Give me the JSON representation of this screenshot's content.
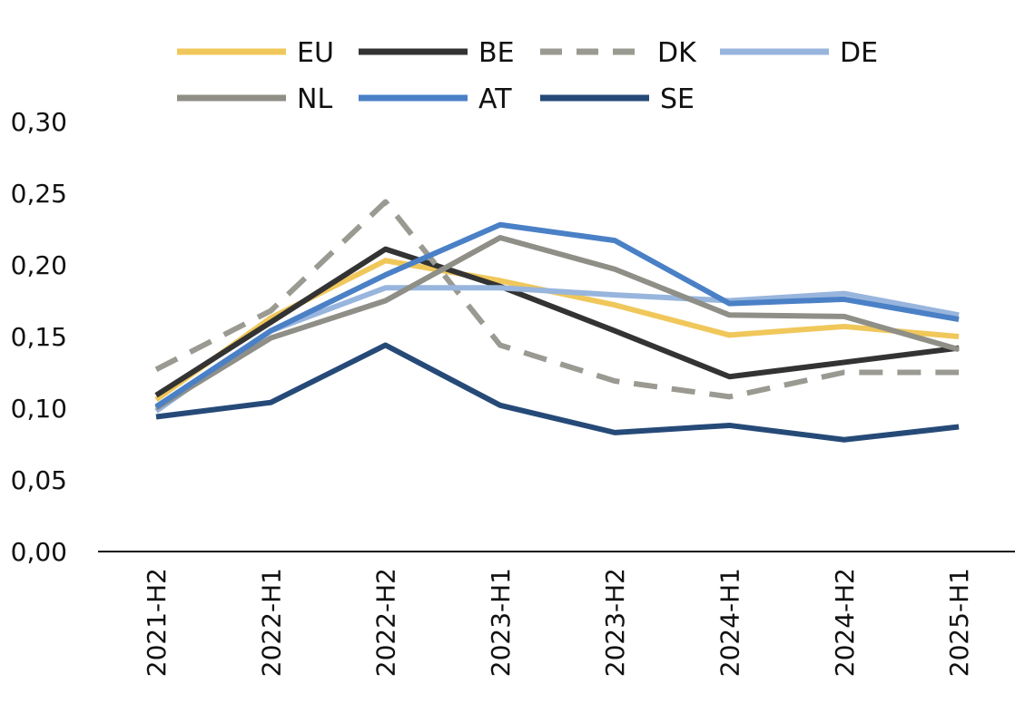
{
  "chart_data": {
    "type": "line",
    "title": "",
    "xlabel": "",
    "ylabel": "",
    "categories": [
      "2021-H2",
      "2022-H1",
      "2022-H2",
      "2023-H1",
      "2023-H2",
      "2024-H1",
      "2024-H2",
      "2025-H1"
    ],
    "ylim": [
      0,
      0.3
    ],
    "yticks": [
      "0,00",
      "0,05",
      "0,10",
      "0,15",
      "0,20",
      "0,25",
      "0,30"
    ],
    "grid": false,
    "legend_position": "top",
    "series": [
      {
        "name": "EU",
        "color": "#F0C75A",
        "dashed": false,
        "values": [
          0.106,
          0.163,
          0.203,
          0.189,
          0.172,
          0.151,
          0.157,
          0.15
        ]
      },
      {
        "name": "BE",
        "color": "#333333",
        "dashed": false,
        "values": [
          0.109,
          0.16,
          0.211,
          0.185,
          0.154,
          0.122,
          0.132,
          0.142
        ]
      },
      {
        "name": "DK",
        "color": "#9A9A92",
        "dashed": true,
        "values": [
          0.127,
          0.168,
          0.244,
          0.144,
          0.119,
          0.108,
          0.125,
          0.125
        ]
      },
      {
        "name": "DE",
        "color": "#98B5DD",
        "dashed": false,
        "values": [
          0.098,
          0.154,
          0.184,
          0.184,
          0.179,
          0.175,
          0.18,
          0.165
        ]
      },
      {
        "name": "NL",
        "color": "#8F8F88",
        "dashed": false,
        "values": [
          0.1,
          0.149,
          0.175,
          0.219,
          0.197,
          0.165,
          0.164,
          0.141
        ]
      },
      {
        "name": "AT",
        "color": "#4A80C6",
        "dashed": false,
        "values": [
          0.101,
          0.154,
          0.193,
          0.228,
          0.217,
          0.173,
          0.176,
          0.162
        ]
      },
      {
        "name": "SE",
        "color": "#264A78",
        "dashed": false,
        "values": [
          0.094,
          0.104,
          0.144,
          0.102,
          0.083,
          0.088,
          0.078,
          0.087
        ]
      }
    ]
  }
}
